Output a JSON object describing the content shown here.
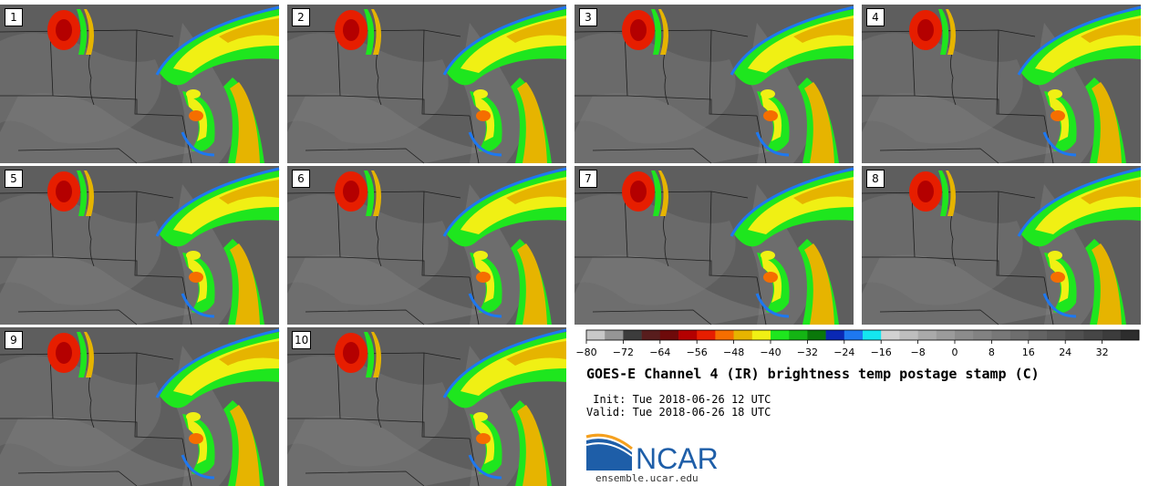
{
  "panels": [
    {
      "label": "1"
    },
    {
      "label": "2"
    },
    {
      "label": "3"
    },
    {
      "label": "4"
    },
    {
      "label": "5"
    },
    {
      "label": "6"
    },
    {
      "label": "7"
    },
    {
      "label": "8"
    },
    {
      "label": "9"
    },
    {
      "label": "10"
    }
  ],
  "colorbar": {
    "colors": [
      "#c8c8c8",
      "#969696",
      "#3c3c3c",
      "#581d1d",
      "#6e0a0a",
      "#b40000",
      "#e61e00",
      "#f56e00",
      "#e6b400",
      "#f0f014",
      "#1ee61e",
      "#14b414",
      "#0a780a",
      "#0a28b4",
      "#1e78f0",
      "#14e6f0",
      "#d2d2d2",
      "#bebebe",
      "#aaaaaa",
      "#9b9b9b",
      "#8c8c8c",
      "#828282",
      "#787878",
      "#6e6e6e",
      "#646464",
      "#5a5a5a",
      "#505050",
      "#464646",
      "#3c3c3c",
      "#2d2d2d"
    ],
    "tick_labels": [
      "−80",
      "−72",
      "−64",
      "−56",
      "−48",
      "−40",
      "−32",
      "−24",
      "−16",
      "−8",
      "0",
      "8",
      "16",
      "24",
      "32"
    ]
  },
  "title": "GOES-E Channel 4 (IR) brightness temp postage stamp (C)",
  "init": " Init: Tue 2018-06-26 12 UTC",
  "valid": "Valid: Tue 2018-06-26 18 UTC",
  "logo_text": "NCAR",
  "site": "ensemble.ucar.edu"
}
